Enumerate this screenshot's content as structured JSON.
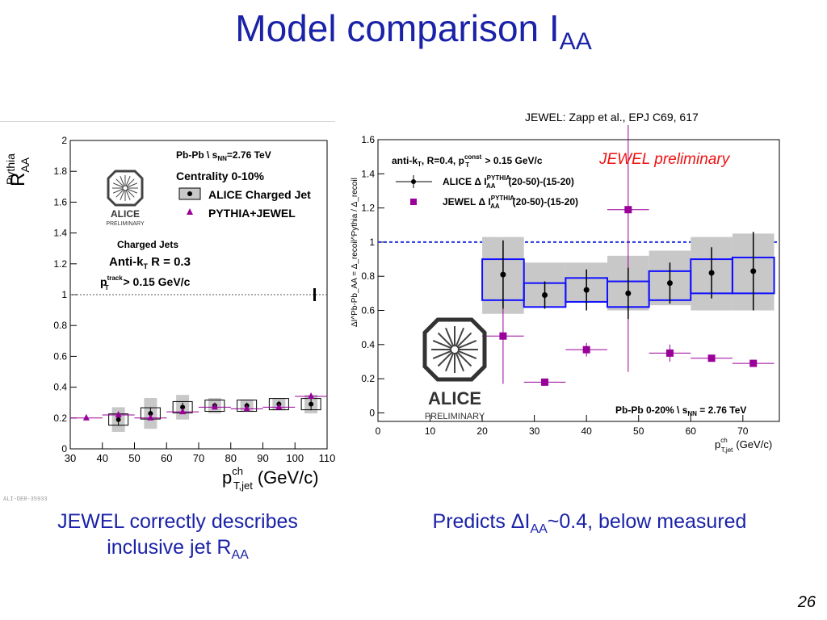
{
  "slide": {
    "title_main": "Model comparison I",
    "title_sub": "AA",
    "reference": "JEWEL: Zapp et al., EPJ C69, 617",
    "watermark": "ALI-DER-35933",
    "caption_left_line1": "JEWEL correctly describes",
    "caption_left_line2_main": "inclusive jet R",
    "caption_left_line2_sub": "AA",
    "caption_right_main1": "Predicts ΔI",
    "caption_right_sub": "AA",
    "caption_right_main2": "~0.4, below measured",
    "page_number": "26"
  },
  "logo": {
    "name": "ALICE",
    "subtitle": "PRELIMINARY"
  },
  "colors": {
    "title": "#1a22a8",
    "pythia_jewel": "#990099",
    "band": "#c8c8c8",
    "box_blue": "#1010ff",
    "dashed_blue": "#2030e0"
  },
  "chart_data": [
    {
      "type": "scatter",
      "ylabel_main": "R",
      "ylabel_sub": "AA",
      "ylabel_sup": "Pythia",
      "xlabel_main": "p",
      "xlabel_sup": "ch",
      "xlabel_sub": "T,jet",
      "xlabel_unit": "(GeV/c)",
      "xlim": [
        30,
        110
      ],
      "ylim": [
        0,
        2
      ],
      "xticks": [
        "30",
        "40",
        "50",
        "60",
        "70",
        "80",
        "90",
        "100",
        "110"
      ],
      "yticks": [
        "0",
        "0.2",
        "0.4",
        "0.6",
        "0.8",
        "1",
        "1.2",
        "1.4",
        "1.6",
        "1.8",
        "2"
      ],
      "reference_line": 1,
      "legend_system": "Pb-Pb \\ s",
      "legend_system_sub": "NN",
      "legend_system_energy": "=2.76 TeV",
      "legend_centrality": "Centrality 0-10%",
      "legend": [
        "ALICE Charged Jet",
        "PYTHIA+JEWEL"
      ],
      "text_charged_jets": "Charged Jets",
      "text_antikt": "Anti-k",
      "text_antikt_sub": "T",
      "text_antikt_r": " R = 0.3",
      "text_pt_main": "p",
      "text_pt_sup": "track",
      "text_pt_sub": "T",
      "text_pt_val": " > 0.15 GeV/c",
      "series": [
        {
          "name": "ALICE Charged Jet",
          "x": [
            45,
            55,
            65,
            75,
            85,
            95,
            105
          ],
          "y": [
            0.19,
            0.23,
            0.27,
            0.28,
            0.28,
            0.29,
            0.29
          ],
          "yerr": [
            0.04,
            0.04,
            0.03,
            0.02,
            0.02,
            0.02,
            0.04
          ],
          "syst": [
            0.08,
            0.1,
            0.08,
            0.05,
            0.04,
            0.04,
            0.06
          ]
        },
        {
          "name": "PYTHIA+JEWEL",
          "x": [
            35,
            45,
            55,
            65,
            75,
            85,
            95,
            105
          ],
          "y": [
            0.2,
            0.22,
            0.2,
            0.24,
            0.27,
            0.26,
            0.27,
            0.34
          ]
        }
      ]
    },
    {
      "type": "scatter",
      "ylabel": "ΔI^Pb-Pb_AA = Δ_recoil^Pythia / Δ_recoil",
      "xlabel_main": "p",
      "xlabel_sup": "ch",
      "xlabel_sub": "T,jet",
      "xlabel_unit": "(GeV/c)",
      "xlim": [
        0,
        77
      ],
      "ylim": [
        -0.05,
        1.6
      ],
      "xticks": [
        "0",
        "10",
        "20",
        "30",
        "40",
        "50",
        "60",
        "70"
      ],
      "yticks": [
        "0",
        "0.2",
        "0.4",
        "0.6",
        "0.8",
        "1",
        "1.2",
        "1.4",
        "1.6"
      ],
      "reference_line": 1,
      "header_text": "anti-k",
      "header_sub": "T",
      "header_rest": ", R=0.4, p",
      "header_sup": "const",
      "header_sub2": "T",
      "header_end": " > 0.15 GeV/c",
      "annotation": "JEWEL preliminary",
      "legend_alice": "ALICE  Δ I",
      "legend_jewel": "JEWEL  Δ I",
      "legend_sup": "PYTHIA",
      "legend_sub": "AA",
      "legend_range": "(20-50)-(15-20)",
      "system_label": "Pb-Pb 0-20%  \\ s",
      "system_sub": "NN",
      "system_energy": " = 2.76 TeV",
      "series": [
        {
          "name": "ALICE  Δ I",
          "x": [
            24,
            32,
            40,
            48,
            56,
            64,
            72
          ],
          "xhalf": [
            4,
            4,
            4,
            4,
            4,
            4,
            4
          ],
          "y": [
            0.81,
            0.69,
            0.72,
            0.7,
            0.76,
            0.82,
            0.83
          ],
          "yerr": [
            0.2,
            0.08,
            0.12,
            0.15,
            0.12,
            0.15,
            0.23
          ],
          "box_lo": [
            0.66,
            0.62,
            0.65,
            0.62,
            0.66,
            0.7,
            0.7
          ],
          "box_hi": [
            0.9,
            0.76,
            0.79,
            0.77,
            0.83,
            0.9,
            0.91
          ],
          "band_lo": [
            0.58,
            0.62,
            0.65,
            0.6,
            0.63,
            0.6,
            0.6
          ],
          "band_hi": [
            1.03,
            0.88,
            0.88,
            0.92,
            0.95,
            1.03,
            1.05
          ]
        },
        {
          "name": "JEWEL  Δ I",
          "x": [
            24,
            32,
            40,
            48,
            56,
            64,
            72
          ],
          "xhalf": [
            4,
            4,
            4,
            4,
            4,
            4,
            4
          ],
          "y": [
            0.45,
            0.18,
            0.37,
            1.19,
            0.35,
            0.32,
            0.29
          ],
          "yerr": [
            0.28,
            0.02,
            0.04,
            0.95,
            0.05,
            0.02,
            0.01
          ]
        }
      ]
    }
  ]
}
